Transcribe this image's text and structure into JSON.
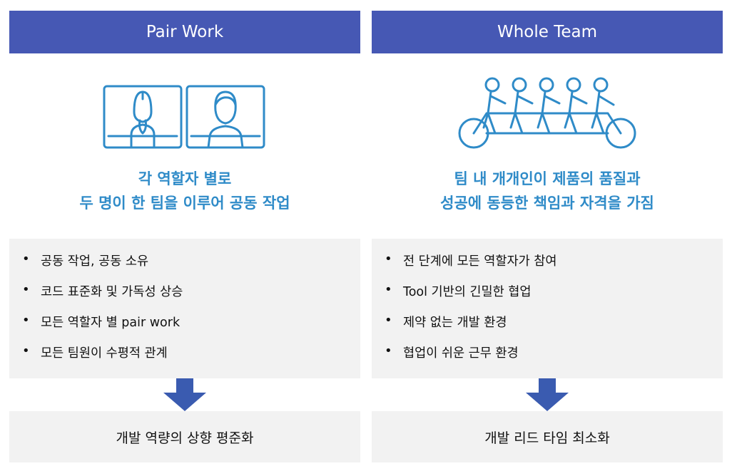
{
  "left": {
    "title": "Pair Work",
    "tagline": [
      "각 역할자 별로",
      "두 명이 한 팀을 이루어 공동 작업"
    ],
    "bullets": [
      "공동 작업, 공동 소유",
      "코드 표준화 및 가독성 상승",
      "모든 역할자 별 pair work",
      "모든 팀원이 수평적 관계"
    ],
    "result": "개발 역량의 상향 평준화"
  },
  "right": {
    "title": "Whole Team",
    "tagline": [
      "팀 내 개개인이 제품의 품질과",
      "성공에 동등한 책임과 자격을 가짐"
    ],
    "bullets": [
      "전 단계에 모든 역할자가 참여",
      "Tool 기반의 긴밀한 협업",
      "제약 없는 개발 환경",
      "협업이 쉬운 근무 환경"
    ],
    "result": "개발 리드 타임 최소화"
  },
  "colors": {
    "header": "#4658b4",
    "accent": "#2f8bc8",
    "box": "#f2f2f2",
    "arrow": "#3a5bb0"
  },
  "icons": {
    "left": "two-persons-monitors-icon",
    "right": "tandem-bicycle-team-icon"
  }
}
